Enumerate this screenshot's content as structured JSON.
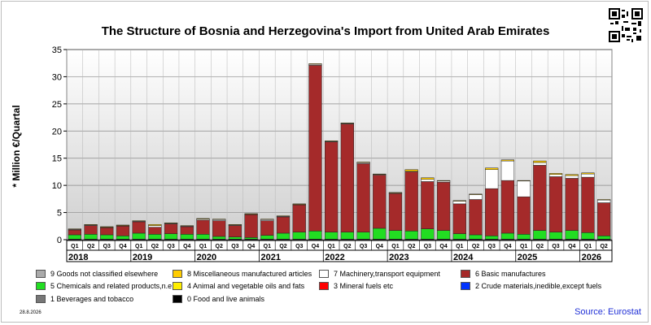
{
  "chart_data": {
    "type": "bar",
    "stacked": true,
    "title": "The Structure of Bosnia and Herzegovina's Import from United Arab Emirates",
    "ylabel": "* Million €/Quartal",
    "ylim": [
      0,
      35
    ],
    "yticks": [
      0,
      5,
      10,
      15,
      20,
      25,
      30,
      35
    ],
    "grid": true,
    "legend_position": "bottom",
    "years": [
      "2018",
      "2019",
      "2020",
      "2021",
      "2022",
      "2023",
      "2024",
      "2025",
      "2026"
    ],
    "categories": [
      "Q1",
      "Q2",
      "Q3",
      "Q4",
      "Q1",
      "Q2",
      "Q3",
      "Q4",
      "Q1",
      "Q2",
      "Q3",
      "Q4",
      "Q1",
      "Q2",
      "Q3",
      "Q4",
      "Q1",
      "Q2",
      "Q3",
      "Q4",
      "Q1",
      "Q2",
      "Q3",
      "Q4",
      "Q1",
      "Q2",
      "Q3",
      "Q4",
      "Q1",
      "Q2",
      "Q3",
      "Q4",
      "Q1",
      "Q2"
    ],
    "series": [
      {
        "name": "0 Food and live animals",
        "color": "#000000",
        "values": [
          0.1,
          0.1,
          0.1,
          0.1,
          0.1,
          0.1,
          0.1,
          0.1,
          0.1,
          0.1,
          0.1,
          0.1,
          0.1,
          0.1,
          0.1,
          0.1,
          0.1,
          0.1,
          0.1,
          0.1,
          0.1,
          0.1,
          0.1,
          0.1,
          0.1,
          0.1,
          0.1,
          0.1,
          0.1,
          0.1,
          0.1,
          0.1,
          0.1,
          0.1
        ]
      },
      {
        "name": "5 Chemicals and related products,n.e.s.",
        "color": "#22dd22",
        "values": [
          0.8,
          0.9,
          0.8,
          0.6,
          1.1,
          0.9,
          1.0,
          0.9,
          0.9,
          0.5,
          0.4,
          0.3,
          0.7,
          1.1,
          1.3,
          1.5,
          1.3,
          1.3,
          1.3,
          2.0,
          1.6,
          1.5,
          1.9,
          1.6,
          1.0,
          0.8,
          0.6,
          1.1,
          0.9,
          1.6,
          1.3,
          1.6,
          1.2,
          0.6
        ]
      },
      {
        "name": "6 Basic manufactures",
        "color": "#a52a2a",
        "values": [
          0.9,
          1.6,
          1.3,
          1.8,
          2.1,
          1.3,
          1.8,
          1.4,
          2.6,
          2.9,
          2.1,
          4.2,
          2.7,
          3.0,
          5.0,
          30.5,
          16.6,
          19.9,
          12.6,
          9.8,
          6.8,
          10.9,
          8.7,
          8.9,
          5.5,
          6.5,
          8.7,
          9.7,
          6.9,
          12.0,
          10.2,
          9.6,
          10.2,
          6.1
        ]
      },
      {
        "name": "7 Machinery,transport equipment",
        "color": "#ffffff",
        "values": [
          0.1,
          0.1,
          0.1,
          0.1,
          0.1,
          0.3,
          0.1,
          0.1,
          0.2,
          0.2,
          0.1,
          0.1,
          0.2,
          0.1,
          0.1,
          0.2,
          0.1,
          0.1,
          0.2,
          0.1,
          0.1,
          0.1,
          0.4,
          0.2,
          0.5,
          0.9,
          3.5,
          3.6,
          2.9,
          0.5,
          0.4,
          0.5,
          0.6,
          0.5
        ]
      },
      {
        "name": "8 Miscellaneous manufactured articles",
        "color": "#ffcc00",
        "values": [
          0.1,
          0.1,
          0.1,
          0.1,
          0.1,
          0.2,
          0.1,
          0.1,
          0.1,
          0.1,
          0.1,
          0.1,
          0.1,
          0.1,
          0.1,
          0.1,
          0.1,
          0.1,
          0.1,
          0.1,
          0.1,
          0.3,
          0.3,
          0.1,
          0.1,
          0.1,
          0.3,
          0.2,
          0.1,
          0.3,
          0.2,
          0.2,
          0.2,
          0.1
        ]
      }
    ],
    "legend": [
      {
        "name": "9 Goods not classified elsewhere",
        "color": "#aaaaaa"
      },
      {
        "name": "8 Miscellaneous manufactured articles",
        "color": "#ffcc00"
      },
      {
        "name": "7 Machinery,transport equipment",
        "color": "#ffffff"
      },
      {
        "name": "6 Basic manufactures",
        "color": "#a52a2a"
      },
      {
        "name": "5 Chemicals and related products,n.e.s.",
        "color": "#22dd22"
      },
      {
        "name": "4 Animal and vegetable oils and fats",
        "color": "#ffee00"
      },
      {
        "name": "3 Mineral fuels etc",
        "color": "#ff0000"
      },
      {
        "name": "2 Crude materials,inedible,except fuels",
        "color": "#0033ff"
      },
      {
        "name": "1 Beverages and tobacco",
        "color": "#777777"
      },
      {
        "name": "0 Food and live animals",
        "color": "#000000"
      }
    ]
  },
  "footer": {
    "date": "28.8.2026",
    "source": "Source: Eurostat"
  }
}
